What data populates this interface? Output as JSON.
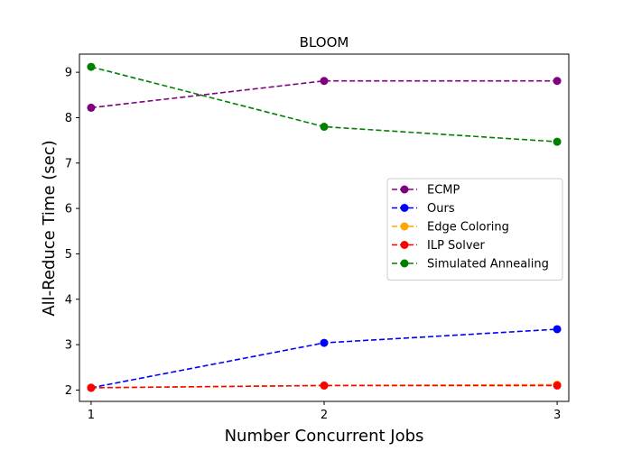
{
  "chart_data": {
    "type": "line",
    "title": "BLOOM",
    "xlabel": "Number Concurrent Jobs",
    "ylabel": "All-Reduce Time (sec)",
    "x": [
      1,
      2,
      3
    ],
    "xlim": [
      0.95,
      3.05
    ],
    "ylim": [
      1.75,
      9.4
    ],
    "xticks": [
      "1",
      "2",
      "3"
    ],
    "yticks": [
      "2",
      "3",
      "4",
      "5",
      "6",
      "7",
      "8",
      "9"
    ],
    "legend_position": "center-right",
    "series": [
      {
        "name": "ECMP",
        "color": "#800080",
        "values": [
          8.22,
          8.81,
          8.81
        ]
      },
      {
        "name": "Ours",
        "color": "#0000ff",
        "values": [
          2.05,
          3.04,
          3.34
        ]
      },
      {
        "name": "Edge Coloring",
        "color": "#ffa500",
        "values": [
          2.05,
          2.1,
          2.12
        ]
      },
      {
        "name": "ILP Solver",
        "color": "#ff0000",
        "values": [
          2.05,
          2.1,
          2.1
        ]
      },
      {
        "name": "Simulated Annealing",
        "color": "#008000",
        "values": [
          9.12,
          7.8,
          7.47
        ]
      }
    ]
  }
}
